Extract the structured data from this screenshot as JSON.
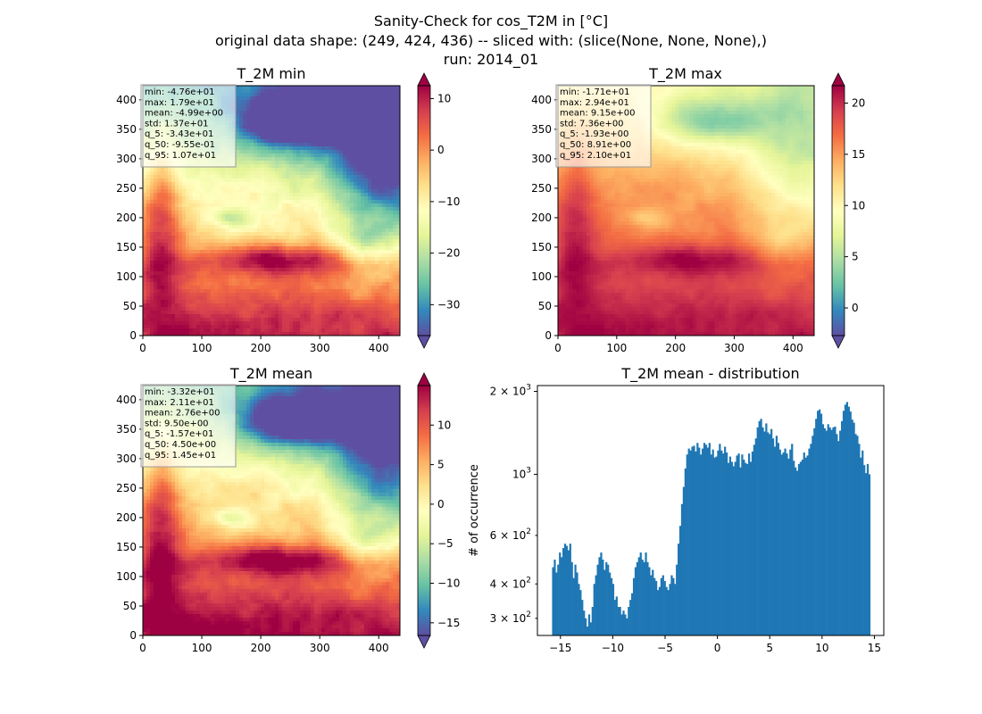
{
  "suptitle": {
    "line1": "Sanity-Check for cos_T2M in [°C]",
    "line2": "original data shape: (249, 424, 436) -- sliced with: (slice(None, None, None),)",
    "line3": "run: 2014_01"
  },
  "chart_data": [
    {
      "type": "heatmap",
      "title": "T_2M min",
      "colormap": "Spectral_r",
      "xlim": [
        0,
        436
      ],
      "ylim": [
        0,
        424
      ],
      "xticks": [
        "0",
        "100",
        "200",
        "300",
        "400"
      ],
      "yticks": [
        "0",
        "50",
        "100",
        "150",
        "200",
        "250",
        "300",
        "350",
        "400"
      ],
      "colorbar": {
        "min": -36,
        "max": 12.5,
        "ticks": [
          "10",
          "0",
          "−10",
          "−20",
          "−30"
        ],
        "tick_values": [
          10,
          0,
          -10,
          -20,
          -30
        ]
      },
      "stats": [
        "min: -4.76e+01",
        "max: 1.79e+01",
        "mean: -4.99e+00",
        "std: 1.37e+01",
        "q_5: -3.43e+01",
        "q_50: -9.55e-01",
        "q_95: 1.07e+01"
      ],
      "variant": "min"
    },
    {
      "type": "heatmap",
      "title": "T_2M max",
      "colormap": "Spectral_r",
      "xlim": [
        0,
        436
      ],
      "ylim": [
        0,
        424
      ],
      "xticks": [
        "0",
        "100",
        "200",
        "300",
        "400"
      ],
      "yticks": [
        "0",
        "50",
        "100",
        "150",
        "200",
        "250",
        "300",
        "350",
        "400"
      ],
      "colorbar": {
        "min": -2.7,
        "max": 21.7,
        "ticks": [
          "20",
          "15",
          "10",
          "5",
          "0"
        ],
        "tick_values": [
          20,
          15,
          10,
          5,
          0
        ]
      },
      "stats": [
        "min: -1.71e+01",
        "max: 2.94e+01",
        "mean: 9.15e+00",
        "std: 7.36e+00",
        "q_5: -1.93e+00",
        "q_50: 8.91e+00",
        "q_95: 2.10e+01"
      ],
      "variant": "max"
    },
    {
      "type": "heatmap",
      "title": "T_2M mean",
      "colormap": "Spectral_r",
      "xlim": [
        0,
        436
      ],
      "ylim": [
        0,
        424
      ],
      "xticks": [
        "0",
        "100",
        "200",
        "300",
        "400"
      ],
      "yticks": [
        "0",
        "50",
        "100",
        "150",
        "200",
        "250",
        "300",
        "350",
        "400"
      ],
      "colorbar": {
        "min": -16.6,
        "max": 15.0,
        "ticks": [
          "10",
          "5",
          "0",
          "−5",
          "−10",
          "−15"
        ],
        "tick_values": [
          10,
          5,
          0,
          -5,
          -10,
          -15
        ]
      },
      "stats": [
        "min: -3.32e+01",
        "max: 2.11e+01",
        "mean: 2.76e+00",
        "std: 9.50e+00",
        "q_5: -1.57e+01",
        "q_50: 4.50e+00",
        "q_95: 1.45e+01"
      ],
      "variant": "mean"
    },
    {
      "type": "bar",
      "title": "T_2M mean - distribution",
      "ylabel": "# of occurrence",
      "xlabel": "",
      "yscale": "log",
      "xlim": [
        -17.2,
        15.9
      ],
      "ylim": [
        260,
        2100
      ],
      "xticks": [
        "−15",
        "−10",
        "−5",
        "0",
        "5",
        "10",
        "15"
      ],
      "xtick_values": [
        -15,
        -10,
        -5,
        0,
        5,
        10,
        15
      ],
      "yticks_major": [
        {
          "value": 1000,
          "base": "10",
          "exp": "3"
        },
        {
          "value": 2000,
          "base": "2 × 10",
          "exp": "3"
        }
      ],
      "yticks_minor": [
        {
          "value": 300,
          "base": "3 × 10",
          "exp": "2"
        },
        {
          "value": 400,
          "base": "4 × 10",
          "exp": "2"
        },
        {
          "value": 600,
          "base": "6 × 10",
          "exp": "2"
        }
      ],
      "bar_color": "#1f77b4",
      "bins": {
        "start": -15.8,
        "end": 14.6,
        "values": [
          460,
          490,
          440,
          470,
          520,
          500,
          540,
          560,
          550,
          530,
          560,
          480,
          420,
          470,
          440,
          400,
          380,
          350,
          320,
          300,
          280,
          310,
          290,
          330,
          400,
          430,
          470,
          500,
          520,
          490,
          450,
          480,
          470,
          440,
          420,
          400,
          350,
          360,
          330,
          330,
          310,
          320,
          310,
          300,
          330,
          350,
          370,
          420,
          460,
          480,
          500,
          520,
          490,
          480,
          520,
          480,
          460,
          430,
          450,
          420,
          410,
          380,
          390,
          420,
          430,
          410,
          390,
          380,
          400,
          430,
          420,
          400,
          470,
          560,
          650,
          780,
          900,
          1050,
          1180,
          1240,
          1220,
          1260,
          1270,
          1210,
          1300,
          1250,
          1180,
          1240,
          1300,
          1280,
          1250,
          1300,
          1180,
          1230,
          1150,
          1160,
          1220,
          1290,
          1220,
          1190,
          1260,
          1200,
          1100,
          1160,
          1110,
          1070,
          1110,
          1170,
          1190,
          1060,
          1180,
          1130,
          1100,
          1090,
          1190,
          1110,
          1210,
          1280,
          1350,
          1480,
          1560,
          1590,
          1480,
          1430,
          1530,
          1420,
          1400,
          1460,
          1350,
          1260,
          1380,
          1300,
          1230,
          1180,
          1200,
          1240,
          1190,
          1140,
          1230,
          1290,
          1120,
          1060,
          1030,
          1090,
          1110,
          1130,
          1200,
          1150,
          1170,
          1240,
          1290,
          1380,
          1470,
          1590,
          1700,
          1720,
          1660,
          1520,
          1470,
          1440,
          1520,
          1480,
          1450,
          1480,
          1490,
          1400,
          1320,
          1440,
          1560,
          1700,
          1790,
          1830,
          1760,
          1690,
          1580,
          1540,
          1400,
          1380,
          1290,
          1150,
          1220,
          1080,
          1010,
          1090,
          1000
        ]
      }
    }
  ]
}
